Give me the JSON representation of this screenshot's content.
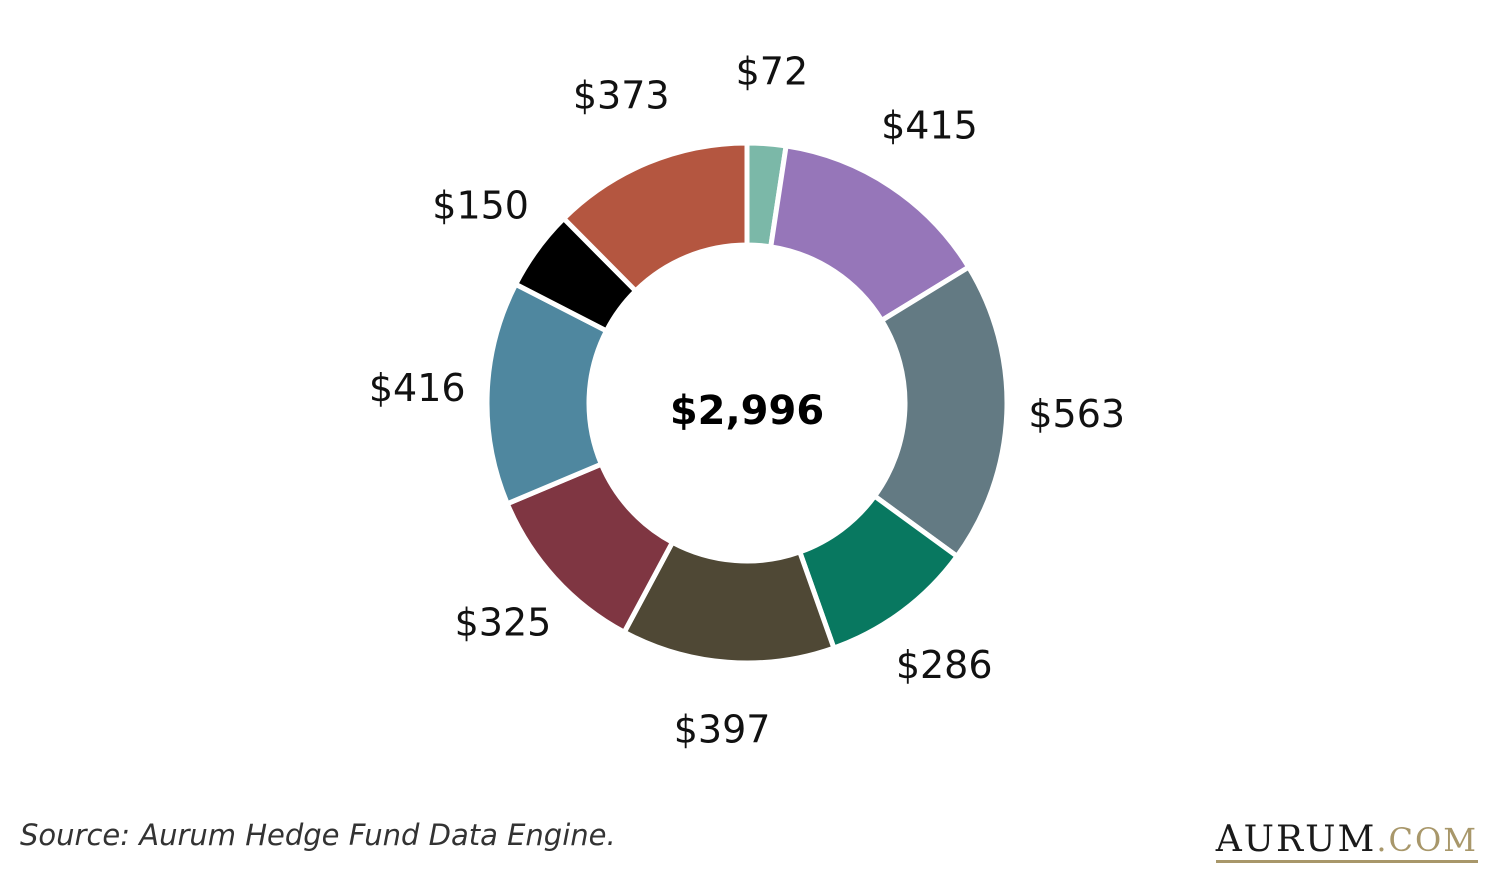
{
  "chart_data": {
    "type": "pie",
    "donut": true,
    "center_label": "$2,996",
    "slices": [
      {
        "label": "$72",
        "value": 72,
        "color": "#7bb8a8"
      },
      {
        "label": "$415",
        "value": 415,
        "color": "#9676b9"
      },
      {
        "label": "$563",
        "value": 563,
        "color": "#637a83"
      },
      {
        "label": "$286",
        "value": 286,
        "color": "#087860"
      },
      {
        "label": "$397",
        "value": 397,
        "color": "#4f4835"
      },
      {
        "label": "$325",
        "value": 325,
        "color": "#7f3642"
      },
      {
        "label": "$416",
        "value": 416,
        "color": "#4f879f"
      },
      {
        "label": "$150",
        "value": 150,
        "color": "#000000"
      },
      {
        "label": "$373",
        "value": 373,
        "color": "#b45640"
      }
    ]
  },
  "footer": {
    "source": "Source: Aurum Hedge Fund Data Engine.",
    "logo_brand": "AURUM",
    "logo_tld": ".COM"
  }
}
